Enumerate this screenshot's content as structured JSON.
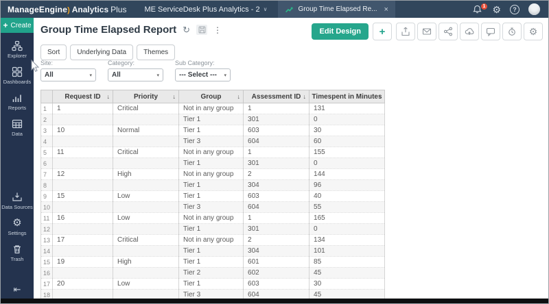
{
  "topbar": {
    "brand_manage": "ManageEngine",
    "brand_analytics": "Analytics",
    "brand_plus": "Plus",
    "workspace_label": "ME ServiceDesk Plus Analytics - 2",
    "tab_label": "Group Time Elapsed Re...",
    "notification_count": "1"
  },
  "sidebar": {
    "create_label": "Create",
    "items_top": [
      {
        "label": "Explorer"
      },
      {
        "label": "Dashboards"
      },
      {
        "label": "Reports"
      },
      {
        "label": "Data"
      }
    ],
    "items_bottom": [
      {
        "label": "Data Sources"
      },
      {
        "label": "Settings"
      },
      {
        "label": "Trash"
      }
    ]
  },
  "header": {
    "title": "Group Time Elapsed Report",
    "edit_design_label": "Edit Design"
  },
  "toolbar": {
    "buttons": [
      "Sort",
      "Underlying Data",
      "Themes"
    ],
    "action_icons": [
      "plus",
      "export",
      "email",
      "share",
      "publish",
      "comment",
      "alert",
      "settings"
    ]
  },
  "filters": [
    {
      "label": "Site:",
      "value": "All"
    },
    {
      "label": "Category:",
      "value": "All"
    },
    {
      "label": "Sub Category:",
      "value": "--- Select ---"
    }
  ],
  "table": {
    "columns": [
      "Request ID",
      "Priority",
      "Group",
      "Assessment ID",
      "Timespent in Minutes"
    ],
    "rows": [
      [
        "1",
        "Critical",
        "Not in any group",
        "1",
        "131"
      ],
      [
        "",
        "",
        "Tier 1",
        "301",
        "0"
      ],
      [
        "10",
        "Normal",
        "Tier 1",
        "603",
        "30"
      ],
      [
        "",
        "",
        "Tier 3",
        "604",
        "60"
      ],
      [
        "11",
        "Critical",
        "Not in any group",
        "1",
        "155"
      ],
      [
        "",
        "",
        "Tier 1",
        "301",
        "0"
      ],
      [
        "12",
        "High",
        "Not in any group",
        "2",
        "144"
      ],
      [
        "",
        "",
        "Tier 1",
        "304",
        "96"
      ],
      [
        "15",
        "Low",
        "Tier 1",
        "603",
        "40"
      ],
      [
        "",
        "",
        "Tier 3",
        "604",
        "55"
      ],
      [
        "16",
        "Low",
        "Not in any group",
        "1",
        "165"
      ],
      [
        "",
        "",
        "Tier 1",
        "301",
        "0"
      ],
      [
        "17",
        "Critical",
        "Not in any group",
        "2",
        "134"
      ],
      [
        "",
        "",
        "Tier 1",
        "304",
        "101"
      ],
      [
        "19",
        "High",
        "Tier 1",
        "601",
        "85"
      ],
      [
        "",
        "",
        "Tier 2",
        "602",
        "45"
      ],
      [
        "20",
        "Low",
        "Tier 1",
        "603",
        "30"
      ],
      [
        "",
        "",
        "Tier 3",
        "604",
        "45"
      ]
    ]
  },
  "icons": {
    "plus": "+",
    "workspace_caret": "∨",
    "close": "×",
    "help": "?",
    "refresh": "↻",
    "kebab": "⋮",
    "gear_glyph": "⚙",
    "caret_down": "▾",
    "sort_desc": "↓",
    "collapse": "⇤"
  },
  "colors": {
    "accent_teal": "#21a38b",
    "topbar_bg": "#31465c",
    "sidebar_bg": "#24334e",
    "notification_badge": "#e8503a",
    "tab_trend_icon": "#2bb889"
  }
}
